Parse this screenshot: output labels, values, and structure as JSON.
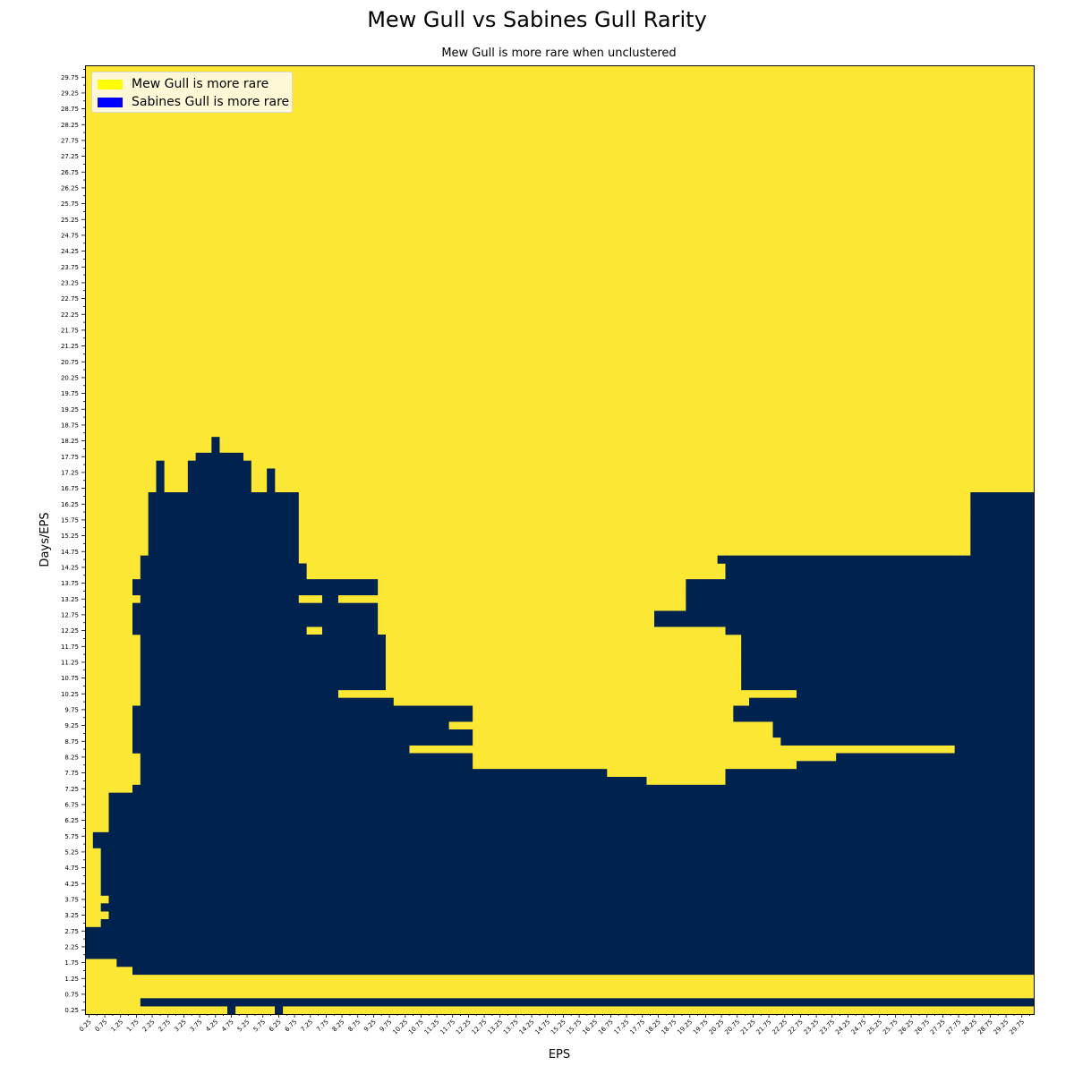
{
  "colors": {
    "mew_more_rare": "#fde735",
    "sabines_more_rare": "#00224e",
    "legend_mew": "#ffff00",
    "legend_sabines": "#0000ff"
  },
  "chart_data": {
    "type": "heatmap",
    "title": "Mew Gull vs Sabines Gull Rarity",
    "subtitle": "Mew Gull is more rare when unclustered",
    "xlabel": "EPS",
    "ylabel": "Days/EPS",
    "x_start": 0.25,
    "x_step": 0.25,
    "x_count": 120,
    "y_start": 0.25,
    "y_step": 0.25,
    "y_count": 120,
    "tick_step": 0.5,
    "xlim": [
      0.25,
      30
    ],
    "ylim": [
      0.25,
      30
    ],
    "cell_values": {
      "0": "Mew Gull is more rare",
      "1": "Sabines Gull is more rare"
    },
    "legend": {
      "placement": "upper-left",
      "entries": [
        "Mew Gull is more rare",
        "Sabines Gull is more rare"
      ]
    },
    "regions_value_1_by_row": [
      {
        "y": 0.25,
        "x_ranges": [
          [
            4.75,
            4.75
          ],
          [
            6.25,
            6.25
          ]
        ]
      },
      {
        "y": 0.5,
        "x_ranges": [
          [
            2.0,
            30.0
          ]
        ]
      },
      {
        "y": 0.75,
        "x_ranges": []
      },
      {
        "y": 1.0,
        "x_ranges": []
      },
      {
        "y": 1.25,
        "x_ranges": []
      },
      {
        "y": 1.5,
        "x_ranges": [
          [
            1.75,
            30.0
          ]
        ]
      },
      {
        "y": 1.75,
        "x_ranges": [
          [
            1.25,
            30.0
          ]
        ]
      },
      {
        "y": 2.0,
        "x_ranges": [
          [
            0.25,
            30.0
          ]
        ]
      },
      {
        "y": 3.0,
        "x_ranges": [
          [
            0.75,
            30.0
          ]
        ]
      },
      {
        "y": 3.25,
        "x_ranges": [
          [
            1.0,
            30.0
          ]
        ]
      },
      {
        "y": 3.5,
        "x_ranges": [
          [
            0.75,
            30.0
          ]
        ]
      },
      {
        "y": 3.75,
        "x_ranges": [
          [
            1.0,
            30.0
          ]
        ]
      },
      {
        "y": 4.0,
        "x_ranges": [
          [
            0.75,
            30.0
          ]
        ]
      },
      {
        "y": 5.5,
        "x_ranges": [
          [
            0.5,
            30.0
          ]
        ]
      },
      {
        "y": 6.0,
        "x_ranges": [
          [
            1.0,
            30.0
          ]
        ]
      },
      {
        "y": 7.0,
        "x_ranges": [
          [
            1.0,
            1.25
          ],
          [
            1.5,
            30.0
          ]
        ]
      },
      {
        "y": 7.25,
        "x_ranges": [
          [
            1.75,
            30.0
          ]
        ]
      },
      {
        "y": 7.5,
        "x_ranges": [
          [
            2.0,
            17.75
          ],
          [
            20.5,
            30.0
          ]
        ]
      },
      {
        "y": 7.75,
        "x_ranges": [
          [
            2.0,
            16.5
          ],
          [
            20.5,
            30.0
          ]
        ]
      },
      {
        "y": 8.0,
        "x_ranges": [
          [
            2.0,
            12.25
          ],
          [
            22.75,
            30.0
          ]
        ]
      },
      {
        "y": 8.25,
        "x_ranges": [
          [
            2.0,
            12.25
          ],
          [
            24.0,
            30.0
          ]
        ]
      },
      {
        "y": 8.5,
        "x_ranges": [
          [
            1.75,
            10.25
          ],
          [
            27.75,
            30.0
          ]
        ]
      },
      {
        "y": 8.75,
        "x_ranges": [
          [
            1.75,
            12.25
          ],
          [
            22.25,
            30.0
          ]
        ]
      },
      {
        "y": 9.0,
        "x_ranges": [
          [
            1.75,
            12.25
          ],
          [
            22.0,
            30.0
          ]
        ]
      },
      {
        "y": 9.25,
        "x_ranges": [
          [
            1.75,
            11.5
          ],
          [
            22.0,
            30.0
          ]
        ]
      },
      {
        "y": 9.5,
        "x_ranges": [
          [
            1.75,
            12.25
          ],
          [
            20.75,
            30.0
          ]
        ]
      },
      {
        "y": 9.75,
        "x_ranges": [
          [
            1.75,
            12.25
          ],
          [
            20.75,
            30.0
          ]
        ]
      },
      {
        "y": 10.0,
        "x_ranges": [
          [
            2.0,
            9.75
          ],
          [
            21.25,
            30.0
          ]
        ]
      },
      {
        "y": 10.25,
        "x_ranges": [
          [
            2.0,
            7.5
          ],
          [
            7.75,
            8.0
          ],
          [
            22.75,
            30.0
          ]
        ]
      },
      {
        "y": 10.5,
        "x_ranges": [
          [
            2.0,
            7.5
          ],
          [
            7.75,
            9.5
          ],
          [
            21.0,
            30.0
          ]
        ]
      },
      {
        "y": 12.25,
        "x_ranges": [
          [
            1.75,
            7.0
          ],
          [
            7.75,
            9.25
          ],
          [
            20.5,
            30.0
          ]
        ]
      },
      {
        "y": 12.5,
        "x_ranges": [
          [
            1.75,
            7.0
          ],
          [
            7.25,
            9.25
          ],
          [
            18.25,
            30.0
          ]
        ]
      },
      {
        "y": 13.0,
        "x_ranges": [
          [
            1.75,
            7.0
          ],
          [
            7.25,
            9.25
          ],
          [
            19.25,
            30.0
          ]
        ]
      },
      {
        "y": 13.25,
        "x_ranges": [
          [
            2.0,
            6.75
          ],
          [
            7.75,
            8.0
          ],
          [
            19.25,
            30.0
          ]
        ]
      },
      {
        "y": 13.5,
        "x_ranges": [
          [
            1.75,
            7.25
          ],
          [
            7.5,
            9.25
          ],
          [
            19.25,
            30.0
          ]
        ]
      },
      {
        "y": 14.0,
        "x_ranges": [
          [
            2.0,
            7.0
          ],
          [
            20.5,
            30.0
          ]
        ]
      },
      {
        "y": 14.5,
        "x_ranges": [
          [
            2.0,
            6.75
          ],
          [
            20.25,
            30.0
          ]
        ]
      },
      {
        "y": 14.75,
        "x_ranges": [
          [
            2.25,
            6.75
          ],
          [
            28.25,
            30.0
          ]
        ]
      },
      {
        "y": 15.25,
        "x_ranges": [
          [
            2.25,
            5.5
          ],
          [
            5.75,
            6.75
          ],
          [
            28.25,
            30.0
          ]
        ]
      },
      {
        "y": 16.5,
        "x_ranges": [
          [
            2.25,
            6.75
          ],
          [
            28.25,
            30.0
          ]
        ]
      },
      {
        "y": 16.75,
        "x_ranges": [
          [
            2.5,
            2.5
          ],
          [
            3.5,
            5.25
          ],
          [
            6.0,
            6.0
          ]
        ]
      },
      {
        "y": 17.0,
        "x_ranges": [
          [
            2.5,
            2.5
          ],
          [
            3.5,
            5.25
          ],
          [
            6.0,
            6.0
          ]
        ]
      },
      {
        "y": 17.5,
        "x_ranges": [
          [
            2.5,
            2.5
          ],
          [
            3.5,
            5.25
          ]
        ]
      },
      {
        "y": 17.75,
        "x_ranges": [
          [
            3.75,
            4.5
          ],
          [
            4.75,
            5.0
          ]
        ]
      },
      {
        "y": 18.0,
        "x_ranges": [
          [
            4.25,
            4.25
          ]
        ]
      },
      {
        "y": 18.5,
        "x_ranges": []
      }
    ]
  }
}
